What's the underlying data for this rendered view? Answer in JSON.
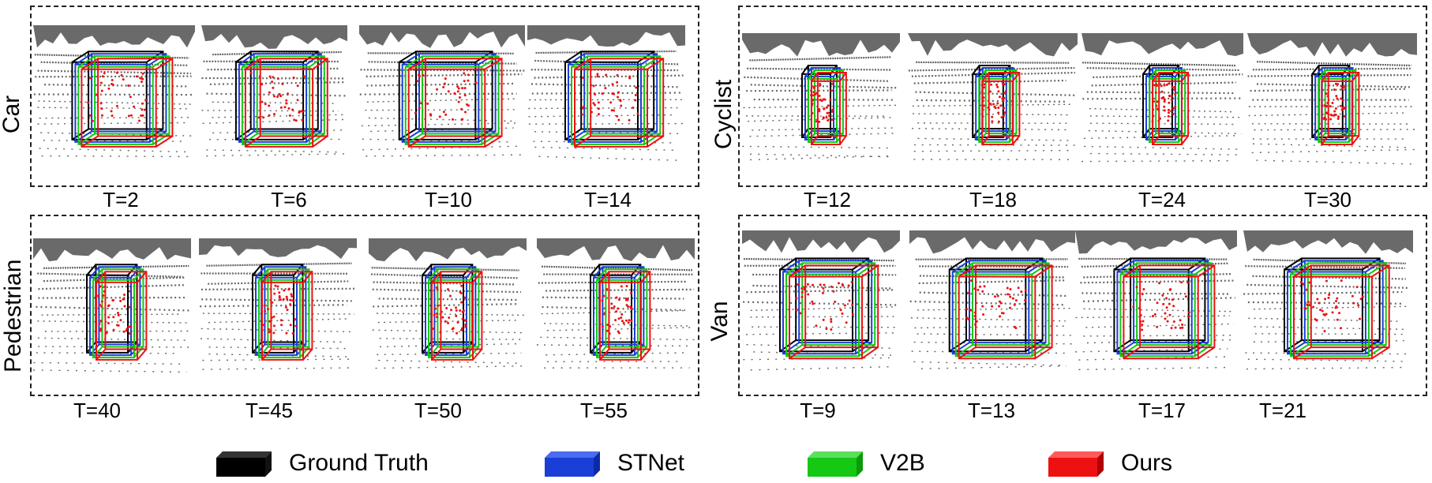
{
  "panels": [
    {
      "category": "Car",
      "timesteps": [
        "T=2",
        "T=6",
        "T=10",
        "T=14"
      ]
    },
    {
      "category": "Cyclist",
      "timesteps": [
        "T=12",
        "T=18",
        "T=24",
        "T=30"
      ]
    },
    {
      "category": "Pedestrian",
      "timesteps": [
        "T=40",
        "T=45",
        "T=50",
        "T=55"
      ]
    },
    {
      "category": "Van",
      "timesteps": [
        "T=9",
        "T=13",
        "T=17",
        "T=21"
      ]
    }
  ],
  "legend": [
    {
      "label": "Ground Truth",
      "color": "#000000"
    },
    {
      "label": "STNet",
      "color": "#1a3fd6"
    },
    {
      "label": "V2B",
      "color": "#14c814"
    },
    {
      "label": "Ours",
      "color": "#ee1111"
    }
  ],
  "colors": {
    "points": "#666666",
    "target_points": "#ee1111"
  }
}
